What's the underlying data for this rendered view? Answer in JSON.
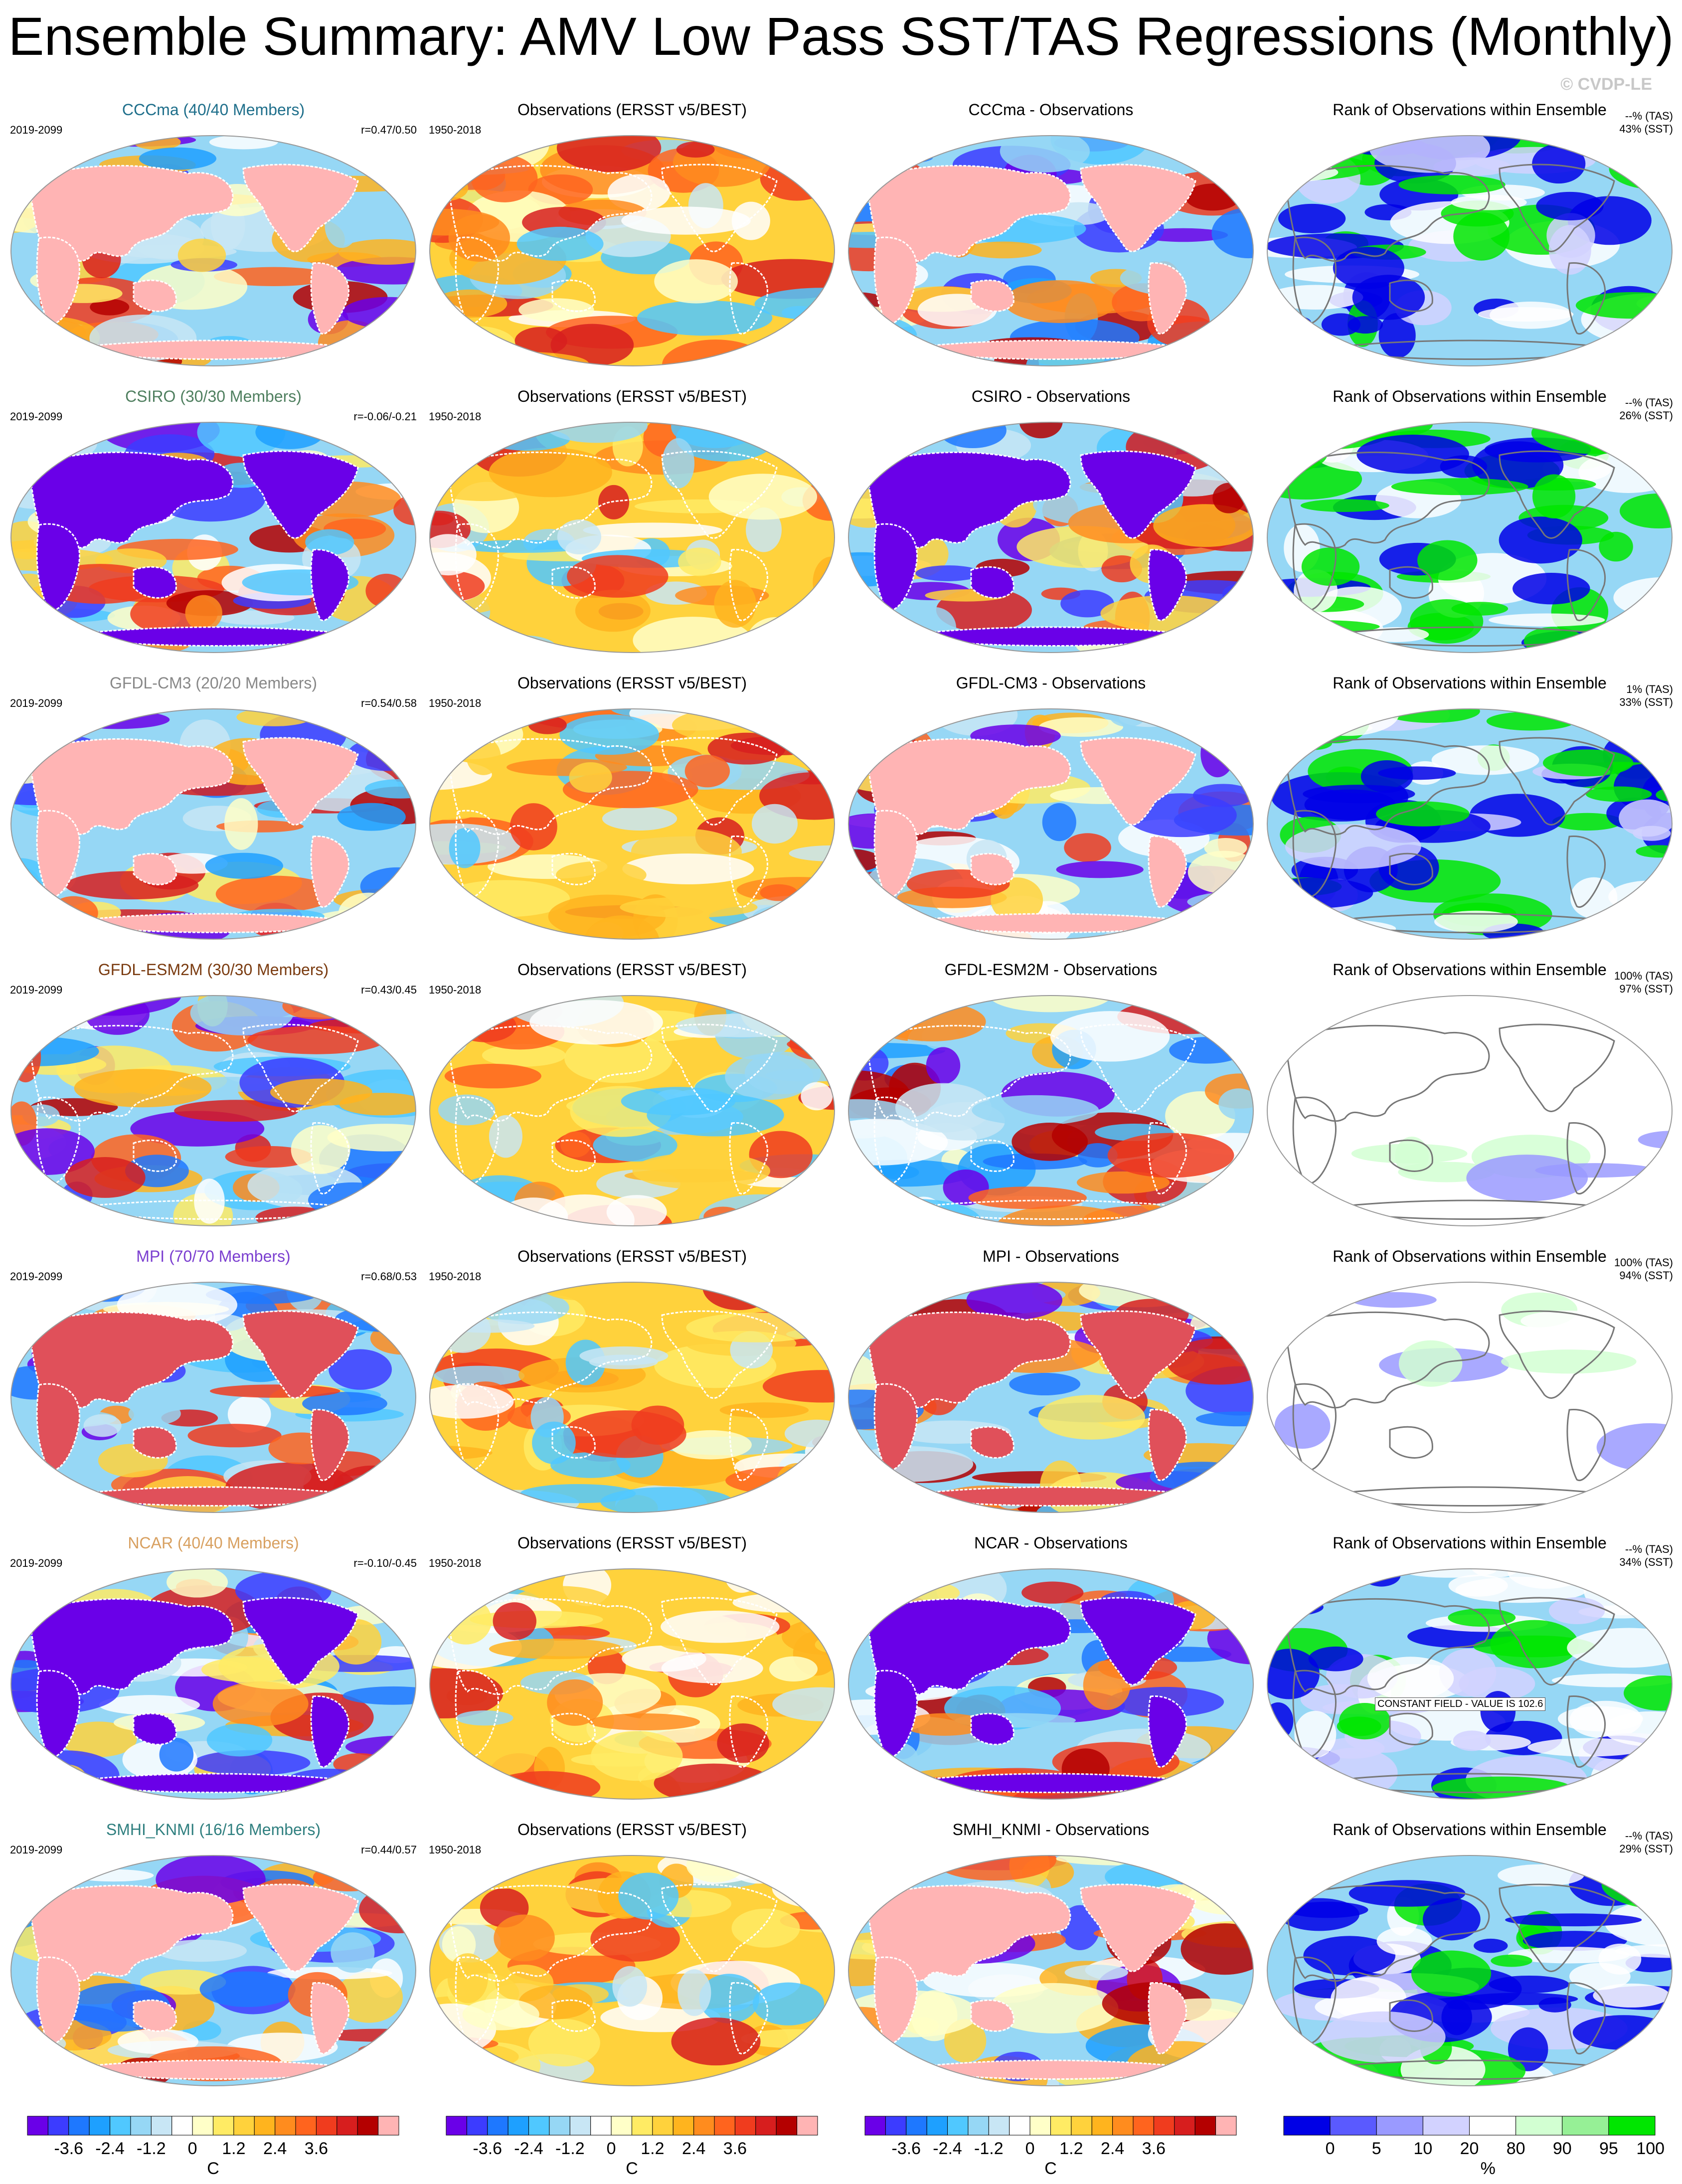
{
  "title": "Ensemble Summary: AMV Low Pass SST/TAS Regressions (Monthly)",
  "watermark": "© CVDP-LE",
  "column_titles": {
    "obs": "Observations (ERSST v5/BEST)",
    "rank": "Rank of Observations within Ensemble"
  },
  "rows": [
    {
      "model_title": "CCCma (40/40 Members)",
      "title_color": "#1f6f8b",
      "model_years": "2019-2099",
      "corr": "r=0.47/0.50",
      "obs_years": "1950-2018",
      "diff_title": "CCCma - Observations",
      "rank_tas": "--% (TAS)",
      "rank_sst": "43% (SST)",
      "land": "pink",
      "rank_style": "blue",
      "constant_field": ""
    },
    {
      "model_title": "CSIRO (30/30 Members)",
      "title_color": "#4f7f5f",
      "model_years": "2019-2099",
      "corr": "r=-0.06/-0.21",
      "obs_years": "1950-2018",
      "diff_title": "CSIRO - Observations",
      "rank_tas": "--% (TAS)",
      "rank_sst": "26% (SST)",
      "land": "purple",
      "rank_style": "green",
      "constant_field": ""
    },
    {
      "model_title": "GFDL-CM3 (20/20 Members)",
      "title_color": "#888888",
      "model_years": "2019-2099",
      "corr": "r=0.54/0.58",
      "obs_years": "1950-2018",
      "diff_title": "GFDL-CM3 - Observations",
      "rank_tas": "1% (TAS)",
      "rank_sst": "33% (SST)",
      "land": "pink",
      "rank_style": "blue",
      "constant_field": ""
    },
    {
      "model_title": "GFDL-ESM2M (30/30 Members)",
      "title_color": "#7a3b10",
      "model_years": "2019-2099",
      "corr": "r=0.43/0.45",
      "obs_years": "1950-2018",
      "diff_title": "GFDL-ESM2M - Observations",
      "rank_tas": "100% (TAS)",
      "rank_sst": "97% (SST)",
      "land": "none",
      "rank_style": "white",
      "constant_field": ""
    },
    {
      "model_title": "MPI (70/70 Members)",
      "title_color": "#7b3fd0",
      "model_years": "2019-2099",
      "corr": "r=0.68/0.53",
      "obs_years": "1950-2018",
      "diff_title": "MPI - Observations",
      "rank_tas": "100% (TAS)",
      "rank_sst": "94% (SST)",
      "land": "red",
      "rank_style": "white",
      "constant_field": ""
    },
    {
      "model_title": "NCAR (40/40 Members)",
      "title_color": "#d8a060",
      "model_years": "2019-2099",
      "corr": "r=-0.10/-0.45",
      "obs_years": "1950-2018",
      "diff_title": "NCAR - Observations",
      "rank_tas": "--% (TAS)",
      "rank_sst": "34% (SST)",
      "land": "purple",
      "rank_style": "mixed",
      "constant_field": "CONSTANT FIELD - VALUE IS 102.6"
    },
    {
      "model_title": "SMHI_KNMI (16/16 Members)",
      "title_color": "#2f7f7f",
      "model_years": "2019-2099",
      "corr": "r=0.44/0.57",
      "obs_years": "1950-2018",
      "diff_title": "SMHI_KNMI - Observations",
      "rank_tas": "--% (TAS)",
      "rank_sst": "29% (SST)",
      "land": "pink",
      "rank_style": "blue",
      "constant_field": ""
    }
  ],
  "temp_colorbar": {
    "unit": "C",
    "tick_labels": [
      "-3.6",
      "-2.4",
      "-1.2",
      "0",
      "1.2",
      "2.4",
      "3.6"
    ],
    "colors": [
      "#6a00e8",
      "#3c3cff",
      "#1e78ff",
      "#1ea0ff",
      "#50c8ff",
      "#96d7f5",
      "#c8e6f5",
      "#ffffff",
      "#ffffc8",
      "#ffeb64",
      "#ffd23c",
      "#ffb41e",
      "#ff8c1e",
      "#ff641e",
      "#f03c1e",
      "#d71e1e",
      "#b40000",
      "#ffb4b4"
    ]
  },
  "rank_colorbar": {
    "unit": "%",
    "tick_labels": [
      "0",
      "5",
      "10",
      "20",
      "80",
      "90",
      "95",
      "100"
    ],
    "colors": [
      "#0000e6",
      "#5a5aff",
      "#9a9aff",
      "#d2d2ff",
      "#ffffff",
      "#d2ffd2",
      "#96f096",
      "#00e600"
    ]
  }
}
